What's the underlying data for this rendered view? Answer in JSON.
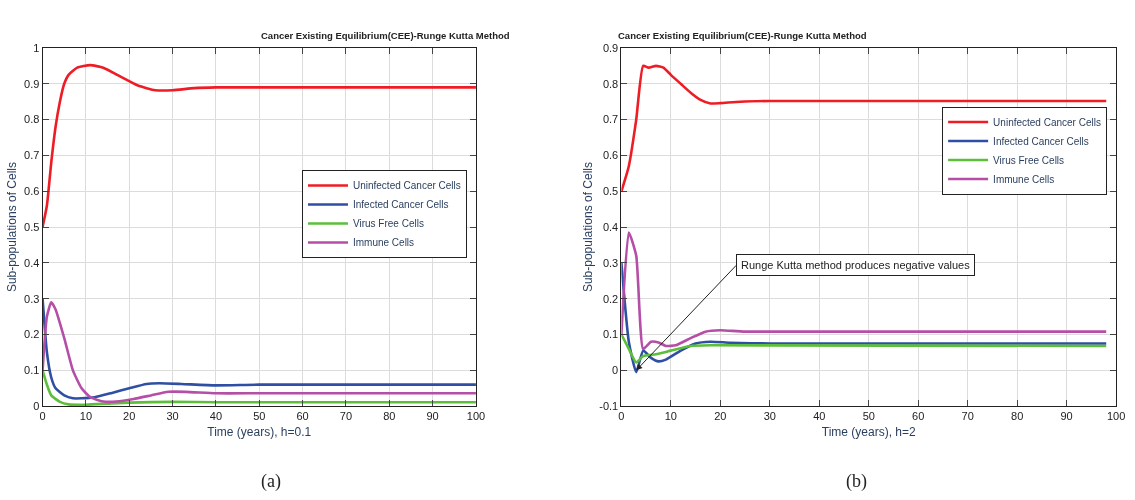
{
  "chart_data": [
    {
      "type": "line",
      "title": "Cancer Existing Equilibrium(CEE)-Runge Kutta Method",
      "xlabel": "Time (years), h=0.1",
      "ylabel": "Sub-populations of Cells",
      "xlim": [
        0,
        100
      ],
      "xticks": [
        0,
        10,
        20,
        30,
        40,
        50,
        60,
        70,
        80,
        90,
        100
      ],
      "ylim": [
        0,
        1
      ],
      "yticks": [
        0,
        0.1,
        0.2,
        0.3,
        0.4,
        0.5,
        0.6,
        0.7,
        0.8,
        0.9,
        1
      ],
      "grid": true,
      "legend": "right",
      "marker": "none",
      "line_style": "solid",
      "annotations": [
        "(a)"
      ],
      "series": [
        {
          "name": "Uninfected Cancer Cells",
          "color": "#ee1c25",
          "x": [
            0,
            1,
            2,
            3,
            4,
            5,
            6,
            8,
            11,
            14,
            18,
            22,
            26,
            30,
            35,
            40,
            50,
            100
          ],
          "values": [
            0.5,
            0.56,
            0.68,
            0.78,
            0.85,
            0.9,
            0.925,
            0.945,
            0.952,
            0.945,
            0.92,
            0.895,
            0.882,
            0.882,
            0.888,
            0.89,
            0.89,
            0.89
          ]
        },
        {
          "name": "Infected Cancer Cells",
          "color": "#2e4fa3",
          "x": [
            0,
            1,
            2,
            3,
            5,
            7,
            9,
            12,
            16,
            20,
            24,
            27,
            32,
            40,
            50,
            100
          ],
          "values": [
            0.3,
            0.15,
            0.08,
            0.05,
            0.03,
            0.022,
            0.022,
            0.025,
            0.037,
            0.05,
            0.062,
            0.064,
            0.062,
            0.058,
            0.06,
            0.06
          ]
        },
        {
          "name": "Virus Free Cells",
          "color": "#5cbf3a",
          "x": [
            0,
            1,
            2,
            4,
            6,
            10,
            15,
            20,
            30,
            40,
            100
          ],
          "values": [
            0.1,
            0.06,
            0.03,
            0.012,
            0.005,
            0.004,
            0.007,
            0.01,
            0.012,
            0.011,
            0.011
          ]
        },
        {
          "name": "Immune Cells",
          "color": "#b54ea6",
          "x": [
            0,
            1,
            2,
            3,
            5,
            7,
            9,
            11,
            14,
            17,
            21,
            25,
            29,
            33,
            40,
            50,
            100
          ],
          "values": [
            0.1,
            0.25,
            0.29,
            0.27,
            0.19,
            0.1,
            0.05,
            0.025,
            0.013,
            0.013,
            0.02,
            0.03,
            0.04,
            0.04,
            0.036,
            0.036,
            0.036
          ]
        }
      ]
    },
    {
      "type": "line",
      "title": "Cancer Existing Equilibrium(CEE)-Runge Kutta Method",
      "xlabel": "Time (years), h=2",
      "ylabel": "Sub-populations of Cells",
      "xlim": [
        0,
        100
      ],
      "xticks": [
        0,
        10,
        20,
        30,
        40,
        50,
        60,
        70,
        80,
        90,
        100
      ],
      "ylim": [
        -0.1,
        0.9
      ],
      "yticks": [
        -0.1,
        0,
        0.1,
        0.2,
        0.3,
        0.4,
        0.5,
        0.6,
        0.7,
        0.8,
        0.9
      ],
      "grid": true,
      "legend": "top right",
      "marker": "none",
      "line_style": "solid",
      "annotations": [
        {
          "text": "Runge Kutta method produces negative values",
          "x": 3,
          "y": 0
        },
        "(b)"
      ],
      "series": [
        {
          "name": "Uninfected Cancer Cells",
          "color": "#ee1c25",
          "x": [
            0,
            1.5,
            3,
            4.4,
            5.5,
            7,
            8.5,
            10,
            12,
            14,
            16,
            18,
            20,
            24,
            30,
            98
          ],
          "values": [
            0.5,
            0.57,
            0.7,
            0.85,
            0.845,
            0.85,
            0.845,
            0.825,
            0.8,
            0.775,
            0.755,
            0.745,
            0.746,
            0.75,
            0.752,
            0.752
          ]
        },
        {
          "name": "Infected Cancer Cells",
          "color": "#2e4fa3",
          "x": [
            0,
            1.5,
            3,
            4.4,
            6,
            7.5,
            9,
            12,
            15,
            18,
            22,
            30,
            98
          ],
          "values": [
            0.3,
            0.08,
            -0.005,
            0.055,
            0.035,
            0.025,
            0.03,
            0.055,
            0.075,
            0.08,
            0.077,
            0.075,
            0.075
          ]
        },
        {
          "name": "Virus Free Cells",
          "color": "#5cbf3a",
          "x": [
            0,
            1.5,
            3,
            4.4,
            7,
            10,
            14,
            18,
            98
          ],
          "values": [
            0.1,
            0.06,
            0.022,
            0.04,
            0.045,
            0.055,
            0.068,
            0.07,
            0.068
          ]
        },
        {
          "name": "Immune Cells",
          "color": "#b54ea6",
          "x": [
            0,
            1.5,
            3,
            4.4,
            6,
            7.5,
            9,
            11,
            14,
            17,
            20,
            25,
            98
          ],
          "values": [
            0.1,
            0.385,
            0.32,
            0.06,
            0.08,
            0.078,
            0.068,
            0.07,
            0.09,
            0.108,
            0.112,
            0.108,
            0.108
          ]
        }
      ]
    }
  ]
}
